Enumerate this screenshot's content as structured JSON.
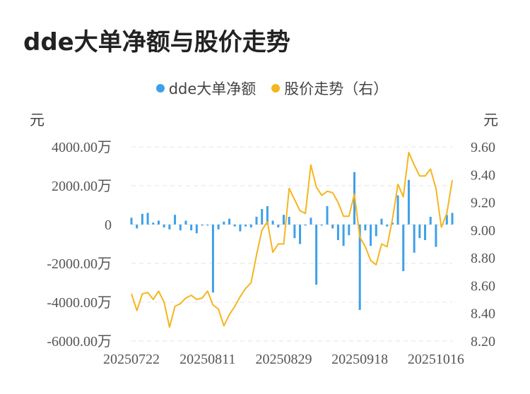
{
  "title": "dde大单净额与股价走势",
  "legend": [
    {
      "label": "dde大单净额",
      "color": "#3fa0e8"
    },
    {
      "label": "股价走势（右）",
      "color": "#f5b51e"
    }
  ],
  "chart_data": {
    "type": "bar+line",
    "title": "dde大单净额与股价走势",
    "y_left_unit": "元",
    "y_right_unit": "元",
    "y_left_ticks": [
      "4000.00万",
      "2000.00万",
      "0",
      "-2000.00万",
      "-4000.00万",
      "-6000.00万"
    ],
    "y_left_range": [
      -6000,
      4000
    ],
    "y_right_ticks": [
      "9.60",
      "9.40",
      "9.20",
      "9.00",
      "8.80",
      "8.60",
      "8.40",
      "8.20"
    ],
    "y_right_range": [
      8.2,
      9.6
    ],
    "x_tick_labels": [
      "20250722",
      "20250811",
      "20250829",
      "20250918",
      "20251016"
    ],
    "x_tick_indices": [
      0,
      14,
      28,
      42,
      56
    ],
    "grid": true,
    "legend_position": "top-center",
    "series": [
      {
        "name": "dde大单净额",
        "type": "bar",
        "color": "#3fa0e8",
        "values": [
          350,
          -200,
          550,
          600,
          100,
          200,
          -150,
          -250,
          500,
          -300,
          200,
          -300,
          -450,
          -50,
          -50,
          -3500,
          -250,
          150,
          300,
          -100,
          -350,
          -100,
          -150,
          400,
          800,
          950,
          200,
          -150,
          500,
          400,
          -700,
          -1000,
          -50,
          350,
          -3100,
          -50,
          950,
          -200,
          -800,
          -1100,
          -550,
          2700,
          -4400,
          -300,
          -1100,
          -600,
          300,
          -100,
          100,
          1500,
          -2400,
          2300,
          -1450,
          -700,
          -800,
          400,
          -1150,
          -50,
          500,
          600
        ]
      },
      {
        "name": "股价走势（右）",
        "type": "line",
        "axis": "right",
        "color": "#f5b51e",
        "values": [
          8.54,
          8.42,
          8.54,
          8.55,
          8.5,
          8.56,
          8.48,
          8.3,
          8.45,
          8.47,
          8.51,
          8.53,
          8.5,
          8.51,
          8.56,
          8.46,
          8.43,
          8.31,
          8.39,
          8.45,
          8.52,
          8.58,
          8.62,
          8.82,
          9.0,
          9.06,
          8.84,
          8.9,
          8.9,
          9.3,
          9.22,
          9.14,
          9.12,
          9.47,
          9.31,
          9.25,
          9.28,
          9.27,
          9.2,
          9.1,
          9.1,
          9.26,
          8.95,
          8.88,
          8.78,
          8.75,
          8.9,
          8.88,
          9.08,
          9.33,
          9.24,
          9.56,
          9.47,
          9.39,
          9.39,
          9.44,
          9.3,
          9.02,
          9.12,
          9.36
        ]
      }
    ]
  }
}
